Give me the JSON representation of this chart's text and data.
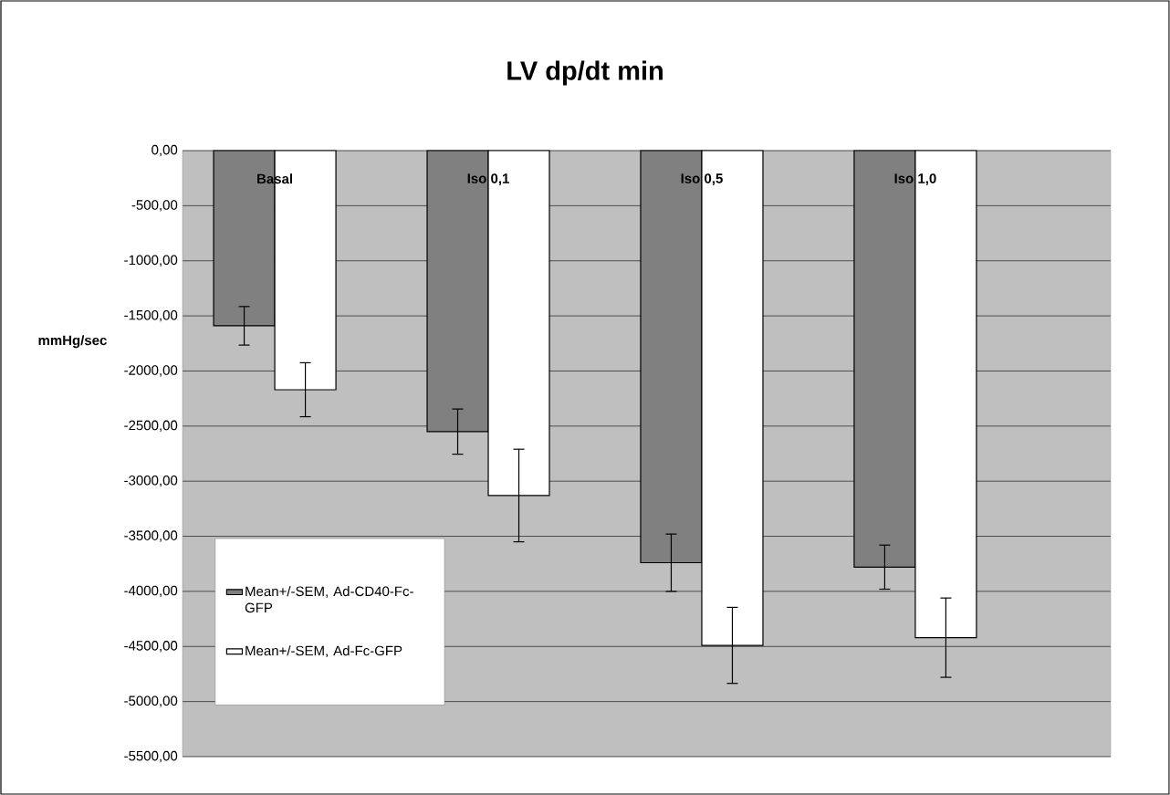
{
  "chart_data": {
    "type": "bar",
    "title": "LV dp/dt min",
    "ylabel": "mmHg/sec",
    "categories": [
      "Basal",
      "Iso 0,1",
      "Iso 0,5",
      "Iso 1,0"
    ],
    "series": [
      {
        "name": "Mean+/-SEM, Ad-CD40-Fc-GFP",
        "color": "#808080",
        "values": [
          -1590,
          -2550,
          -3740,
          -3780
        ],
        "errors": [
          175,
          205,
          260,
          200
        ]
      },
      {
        "name": "Mean+/-SEM, Ad-Fc-GFP",
        "color": "#ffffff",
        "values": [
          -2170,
          -3130,
          -4490,
          -4420
        ],
        "errors": [
          245,
          420,
          345,
          360
        ]
      }
    ],
    "ylim": [
      -5500,
      0
    ],
    "yticks": [
      {
        "value": 0,
        "label": "0,00"
      },
      {
        "value": -500,
        "label": "-500,00"
      },
      {
        "value": -1000,
        "label": "-1000,00"
      },
      {
        "value": -1500,
        "label": "-1500,00"
      },
      {
        "value": -2000,
        "label": "-2000,00"
      },
      {
        "value": -2500,
        "label": "-2500,00"
      },
      {
        "value": -3000,
        "label": "-3000,00"
      },
      {
        "value": -3500,
        "label": "-3500,00"
      },
      {
        "value": -4000,
        "label": "-4000,00"
      },
      {
        "value": -4500,
        "label": "-4500,00"
      },
      {
        "value": -5000,
        "label": "-5000,00"
      },
      {
        "value": -5500,
        "label": "-5500,00"
      }
    ],
    "grid": "y",
    "legend": "left"
  }
}
